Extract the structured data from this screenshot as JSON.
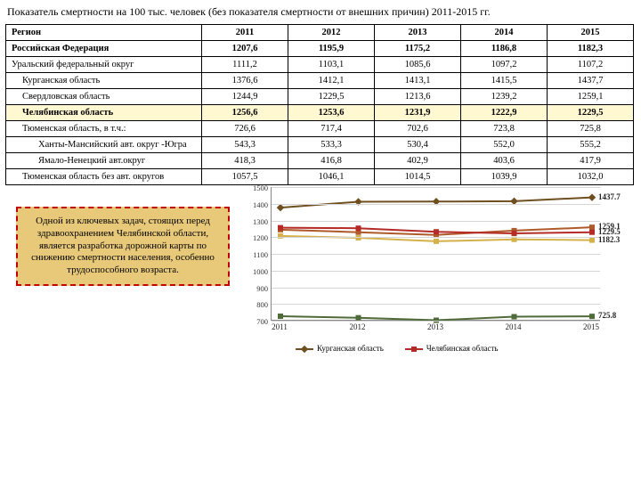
{
  "title": "Показатель смертности на 100 тыс. человек (без показателя смертности от внешних причин) 2011-2015 гг.",
  "table": {
    "header": [
      "Регион",
      "2011",
      "2012",
      "2013",
      "2014",
      "2015"
    ],
    "rows": [
      {
        "cells": [
          "Российская Федерация",
          "1207,6",
          "1195,9",
          "1175,2",
          "1186,8",
          "1182,3"
        ],
        "bold": true,
        "indent": 0
      },
      {
        "cells": [
          "Уральский федеральный округ",
          "1111,2",
          "1103,1",
          "1085,6",
          "1097,2",
          "1107,2"
        ],
        "indent": 0
      },
      {
        "cells": [
          "Курганская область",
          "1376,6",
          "1412,1",
          "1413,1",
          "1415,5",
          "1437,7"
        ],
        "indent": 1
      },
      {
        "cells": [
          "Свердловская область",
          "1244,9",
          "1229,5",
          "1213,6",
          "1239,2",
          "1259,1"
        ],
        "indent": 1
      },
      {
        "cells": [
          "Челябинская область",
          "1256,6",
          "1253,6",
          "1231,9",
          "1222,9",
          "1229,5"
        ],
        "indent": 1,
        "bold": true,
        "highlight": true
      },
      {
        "cells": [
          "Тюменская область, в т.ч.:",
          "726,6",
          "717,4",
          "702,6",
          "723,8",
          "725,8"
        ],
        "indent": 1
      },
      {
        "cells": [
          "Ханты-Мансийский авт. округ -Югра",
          "543,3",
          "533,3",
          "530,4",
          "552,0",
          "555,2"
        ],
        "indent": 2
      },
      {
        "cells": [
          "Ямало-Ненецкий авт.округ",
          "418,3",
          "416,8",
          "402,9",
          "403,6",
          "417,9"
        ],
        "indent": 2
      },
      {
        "cells": [
          "Тюменская область без авт. округов",
          "1057,5",
          "1046,1",
          "1014,5",
          "1039,9",
          "1032,0"
        ],
        "indent": 1
      }
    ]
  },
  "callout_text": "Одной из ключевых задач, стоящих перед здравоохранением Челябинской области, является разработка дорожной карты по снижению смертности населения, особенно трудоспособного возраста.",
  "chart": {
    "type": "line",
    "ylim": [
      700,
      1500
    ],
    "ytick_step": 100,
    "background_color": "#ffffff",
    "grid_color": "#d5d5d5",
    "axis_fontsize": 9,
    "categories": [
      "2011",
      "2012",
      "2013",
      "2014",
      "2015"
    ],
    "series": [
      {
        "name": "Курганская область",
        "color": "#6f4e1f",
        "marker": "diamond",
        "values": [
          1376.6,
          1412.1,
          1413.1,
          1415.5,
          1437.7
        ],
        "end_label": "1437.7"
      },
      {
        "name": "Свердловская область",
        "color": "#ae5a2a",
        "marker": "square",
        "values": [
          1244.9,
          1229.5,
          1213.6,
          1239.2,
          1259.1
        ],
        "end_label": "1259.1"
      },
      {
        "name": "Челябинская область",
        "color": "#b52b27",
        "marker": "square",
        "values": [
          1256.6,
          1253.6,
          1231.9,
          1222.9,
          1229.5
        ],
        "end_label": "1229.5"
      },
      {
        "name": "Российская Федерация",
        "color": "#d4b14a",
        "marker": "square",
        "values": [
          1207.6,
          1195.9,
          1175.2,
          1186.8,
          1182.3
        ],
        "end_label": "1182.3"
      },
      {
        "name": "Тюменская область",
        "color": "#4f6b3a",
        "marker": "square",
        "values": [
          726.6,
          717.4,
          702.6,
          723.8,
          725.8
        ],
        "end_label": "725.8"
      }
    ],
    "legend": [
      {
        "label": "Курганская область",
        "color": "#6f4e1f",
        "marker": "diamond"
      },
      {
        "label": "Челябинская область",
        "color": "#b52b27",
        "marker": "square"
      }
    ]
  }
}
